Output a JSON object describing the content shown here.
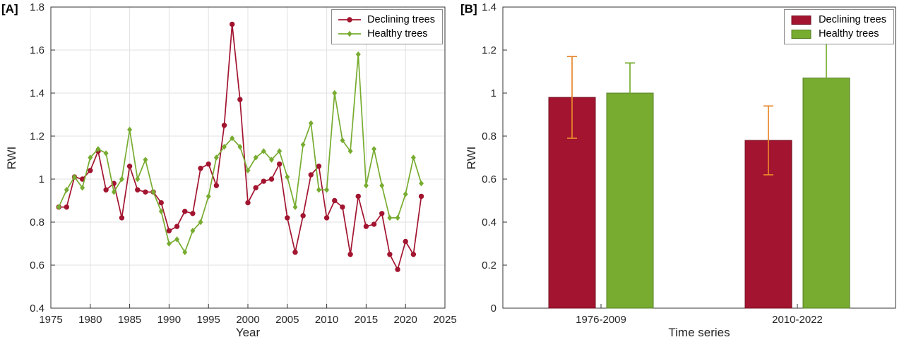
{
  "panelA": {
    "label": "[A]"
  },
  "panelB": {
    "label": "[B]"
  },
  "chart_data": [
    {
      "type": "line",
      "panel": "A",
      "title": "",
      "xlabel": "Year",
      "ylabel": "RWI",
      "xlim": [
        1975,
        2025
      ],
      "ylim": [
        0.4,
        1.8
      ],
      "xticks": [
        1975,
        1980,
        1985,
        1990,
        1995,
        2000,
        2005,
        2010,
        2015,
        2020,
        2025
      ],
      "yticks": [
        0.4,
        0.6,
        0.8,
        1,
        1.2,
        1.4,
        1.6,
        1.8
      ],
      "grid": true,
      "legend_position": "top-right",
      "x": [
        1976,
        1977,
        1978,
        1979,
        1980,
        1981,
        1982,
        1983,
        1984,
        1985,
        1986,
        1987,
        1988,
        1989,
        1990,
        1991,
        1992,
        1993,
        1994,
        1995,
        1996,
        1997,
        1998,
        1999,
        2000,
        2001,
        2002,
        2003,
        2004,
        2005,
        2006,
        2007,
        2008,
        2009,
        2010,
        2011,
        2012,
        2013,
        2014,
        2015,
        2016,
        2017,
        2018,
        2019,
        2020,
        2021,
        2022
      ],
      "series": [
        {
          "name": "Declining trees",
          "color": "#A2142F",
          "marker": "circle",
          "values": [
            0.87,
            0.87,
            1.01,
            1.0,
            1.04,
            1.13,
            0.95,
            0.98,
            0.82,
            1.06,
            0.95,
            0.94,
            0.94,
            0.89,
            0.76,
            0.78,
            0.85,
            0.84,
            1.05,
            1.07,
            0.97,
            1.25,
            1.72,
            1.37,
            0.89,
            0.96,
            0.99,
            1.0,
            1.07,
            0.82,
            0.66,
            0.83,
            1.02,
            1.06,
            0.82,
            0.9,
            0.87,
            0.65,
            0.92,
            0.78,
            0.79,
            0.84,
            0.65,
            0.58,
            0.71,
            0.65,
            0.92
          ]
        },
        {
          "name": "Healthy trees",
          "color": "#77AC30",
          "marker": "diamond",
          "values": [
            0.87,
            0.95,
            1.01,
            0.96,
            1.1,
            1.14,
            1.12,
            0.94,
            1.0,
            1.23,
            1.0,
            1.09,
            0.94,
            0.85,
            0.7,
            0.72,
            0.66,
            0.76,
            0.8,
            0.92,
            1.1,
            1.15,
            1.19,
            1.15,
            1.04,
            1.1,
            1.13,
            1.09,
            1.13,
            1.01,
            0.87,
            1.16,
            1.26,
            0.95,
            0.95,
            1.4,
            1.18,
            1.13,
            1.58,
            0.97,
            1.14,
            0.97,
            0.82,
            0.82,
            0.93,
            1.1,
            0.98
          ]
        }
      ]
    },
    {
      "type": "bar",
      "panel": "B",
      "title": "",
      "xlabel": "Time series",
      "ylabel": "RWI",
      "ylim": [
        0,
        1.4
      ],
      "yticks": [
        0,
        0.2,
        0.4,
        0.6,
        0.8,
        1,
        1.2,
        1.4
      ],
      "grid": false,
      "legend_position": "top-right",
      "categories": [
        "1976-2009",
        "2010-2022"
      ],
      "series": [
        {
          "name": "Declining trees",
          "color": "#A2142F",
          "edge_color": "#731022",
          "error_color": "#E8872D",
          "values": [
            0.98,
            0.78
          ],
          "error_low": [
            0.79,
            0.62
          ],
          "error_high": [
            1.17,
            0.94
          ]
        },
        {
          "name": "Healthy trees",
          "color": "#77AC30",
          "edge_color": "#567D22",
          "error_color": "#77AC30",
          "values": [
            1.0,
            1.07
          ],
          "error_low": [
            0.86,
            0.9
          ],
          "error_high": [
            1.14,
            1.24
          ]
        }
      ]
    }
  ]
}
